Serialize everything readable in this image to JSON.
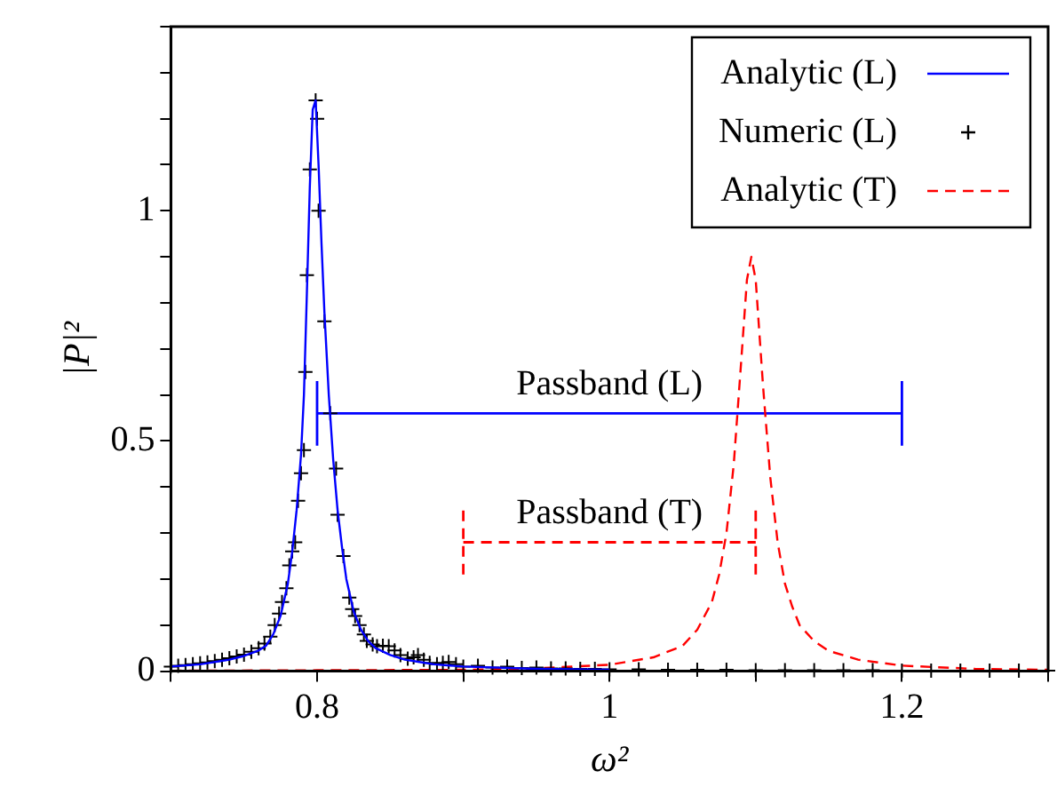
{
  "chart_data": {
    "type": "line",
    "xlabel": "ω²",
    "ylabel": "|P|²",
    "xlim": [
      0.7,
      1.3
    ],
    "ylim": [
      0,
      1.4
    ],
    "xticks": [
      {
        "value": 0.7,
        "label": null
      },
      0.8,
      {
        "value": 0.9,
        "label": null
      },
      1,
      {
        "value": 1.1,
        "label": null
      },
      1.2,
      {
        "value": 1.3,
        "label": null
      }
    ],
    "yticks": [
      0,
      {
        "value": 0.1,
        "label": null
      },
      {
        "value": 0.2,
        "label": null
      },
      {
        "value": 0.3,
        "label": null
      },
      {
        "value": 0.4,
        "label": null
      },
      0.5,
      {
        "value": 0.6,
        "label": null
      },
      {
        "value": 0.7,
        "label": null
      },
      {
        "value": 0.8,
        "label": null
      },
      {
        "value": 0.9,
        "label": null
      },
      1,
      {
        "value": 1.1,
        "label": null
      },
      {
        "value": 1.2,
        "label": null
      },
      {
        "value": 1.3,
        "label": null
      },
      {
        "value": 1.4,
        "label": null
      }
    ],
    "legend": "top right",
    "series": [
      {
        "name": "Analytic (L)",
        "color": "#0000ff",
        "line_style": "solid",
        "marker": "none",
        "x": [
          0.7,
          0.72,
          0.74,
          0.75,
          0.76,
          0.765,
          0.77,
          0.775,
          0.78,
          0.783,
          0.786,
          0.789,
          0.791,
          0.793,
          0.795,
          0.797,
          0.799,
          0.801,
          0.803,
          0.805,
          0.808,
          0.811,
          0.814,
          0.817,
          0.82,
          0.825,
          0.83,
          0.835,
          0.84,
          0.85,
          0.86,
          0.87,
          0.88,
          0.9,
          0.95,
          1.0
        ],
        "values": [
          0.01,
          0.015,
          0.025,
          0.033,
          0.045,
          0.055,
          0.08,
          0.12,
          0.19,
          0.26,
          0.35,
          0.47,
          0.6,
          0.82,
          1.05,
          1.22,
          1.24,
          1.1,
          0.93,
          0.78,
          0.6,
          0.46,
          0.35,
          0.27,
          0.2,
          0.13,
          0.09,
          0.065,
          0.05,
          0.035,
          0.025,
          0.02,
          0.015,
          0.01,
          0.005,
          0.003
        ]
      },
      {
        "name": "Numeric (L)",
        "type": "scatter",
        "color": "#000000",
        "marker": "cross",
        "x": [
          0.7,
          0.705,
          0.71,
          0.715,
          0.72,
          0.725,
          0.73,
          0.735,
          0.74,
          0.745,
          0.75,
          0.755,
          0.76,
          0.764,
          0.768,
          0.771,
          0.774,
          0.776,
          0.779,
          0.781,
          0.783,
          0.785,
          0.787,
          0.789,
          0.791,
          0.792,
          0.793,
          0.795,
          0.799,
          0.8,
          0.801,
          0.805,
          0.809,
          0.813,
          0.814,
          0.818,
          0.822,
          0.824,
          0.826,
          0.829,
          0.832,
          0.834,
          0.838,
          0.841,
          0.845,
          0.849,
          0.853,
          0.857,
          0.862,
          0.866,
          0.869,
          0.873,
          0.877,
          0.882,
          0.886,
          0.89,
          0.895,
          0.9,
          0.91,
          0.92,
          0.93,
          0.94,
          0.95,
          0.96,
          0.97,
          0.98,
          0.99,
          1.0,
          1.02,
          1.04,
          1.06,
          1.08,
          1.1,
          1.12,
          1.14,
          1.16,
          1.18,
          1.2,
          1.22,
          1.24,
          1.26,
          1.28,
          1.3
        ],
        "values": [
          0.01,
          0.012,
          0.013,
          0.015,
          0.017,
          0.019,
          0.022,
          0.025,
          0.028,
          0.032,
          0.036,
          0.042,
          0.05,
          0.06,
          0.075,
          0.1,
          0.125,
          0.15,
          0.18,
          0.23,
          0.26,
          0.28,
          0.37,
          0.43,
          0.48,
          0.65,
          0.86,
          1.09,
          1.24,
          1.2,
          1.0,
          0.76,
          0.56,
          0.44,
          0.34,
          0.25,
          0.16,
          0.135,
          0.12,
          0.1,
          0.08,
          0.066,
          0.058,
          0.054,
          0.055,
          0.054,
          0.045,
          0.035,
          0.027,
          0.03,
          0.035,
          0.025,
          0.018,
          0.015,
          0.018,
          0.02,
          0.015,
          0.01,
          0.012,
          0.008,
          0.01,
          0.007,
          0.008,
          0.006,
          0.006,
          0.005,
          0.005,
          0.004,
          0.004,
          0.003,
          0.003,
          0.003,
          0.002,
          0.002,
          0.002,
          0.002,
          0.002,
          0.001,
          0.001,
          0.001,
          0.001,
          0.001,
          0.001
        ]
      },
      {
        "name": "Analytic (T)",
        "color": "#ff0000",
        "line_style": "dashed",
        "marker": "none",
        "x": [
          0.7,
          0.8,
          0.9,
          0.95,
          1.0,
          1.03,
          1.05,
          1.06,
          1.07,
          1.075,
          1.08,
          1.085,
          1.09,
          1.094,
          1.097,
          1.1,
          1.105,
          1.11,
          1.115,
          1.12,
          1.125,
          1.13,
          1.14,
          1.15,
          1.17,
          1.2,
          1.25,
          1.3
        ],
        "values": [
          0.001,
          0.002,
          0.003,
          0.006,
          0.014,
          0.03,
          0.055,
          0.09,
          0.15,
          0.21,
          0.3,
          0.45,
          0.67,
          0.85,
          0.9,
          0.85,
          0.62,
          0.42,
          0.28,
          0.19,
          0.14,
          0.1,
          0.065,
          0.044,
          0.025,
          0.012,
          0.005,
          0.003
        ]
      },
      {
        "color": "#0000ff",
        "marker": "none",
        "line_style": "solid",
        "x": [
          0.8,
          1.2
        ],
        "values": [
          0.56,
          0.56
        ],
        "errors": [
          0.07,
          0.07
        ]
      },
      {
        "color": "#ff0000",
        "marker": "none",
        "line_style": "dashed",
        "x": [
          0.9,
          1.1
        ],
        "values": [
          0.28,
          0.28
        ],
        "errors": [
          0.07,
          0.07
        ]
      }
    ],
    "annotations": [
      {
        "text": "Passband (L)",
        "x": 1.0,
        "y": 0.56
      },
      {
        "text": "Passband (T)",
        "x": 1.0,
        "y": 0.28
      }
    ]
  }
}
